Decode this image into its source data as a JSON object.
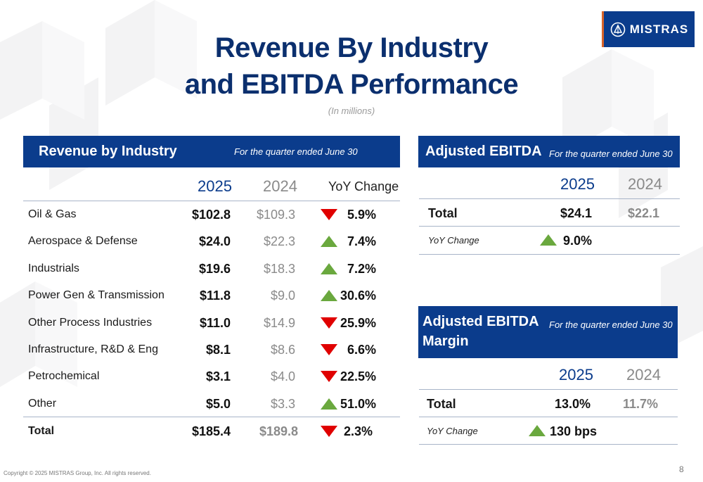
{
  "logo": {
    "text": "MISTRAS"
  },
  "title": {
    "line1": "Revenue By Industry",
    "line2": "and EBITDA Performance"
  },
  "subtitle": "(In millions)",
  "revenue": {
    "title": "Revenue by Industry",
    "period": "For the quarter ended June 30",
    "col_2025": "2025",
    "col_2024": "2024",
    "col_yoy": "YoY Change",
    "rows": [
      {
        "label": "Oil & Gas",
        "v2025": "$102.8",
        "v2024": "$109.3",
        "direction": "down",
        "change": "5.9%"
      },
      {
        "label": "Aerospace & Defense",
        "v2025": "$24.0",
        "v2024": "$22.3",
        "direction": "up",
        "change": "7.4%"
      },
      {
        "label": "Industrials",
        "v2025": "$19.6",
        "v2024": "$18.3",
        "direction": "up",
        "change": "7.2%"
      },
      {
        "label": "Power Gen & Transmission",
        "v2025": "$11.8",
        "v2024": "$9.0",
        "direction": "up",
        "change": "30.6%"
      },
      {
        "label": "Other Process Industries",
        "v2025": "$11.0",
        "v2024": "$14.9",
        "direction": "down",
        "change": "25.9%"
      },
      {
        "label": "Infrastructure, R&D & Eng",
        "v2025": "$8.1",
        "v2024": "$8.6",
        "direction": "down",
        "change": "6.6%"
      },
      {
        "label": "Petrochemical",
        "v2025": "$3.1",
        "v2024": "$4.0",
        "direction": "down",
        "change": "22.5%"
      },
      {
        "label": "Other",
        "v2025": "$5.0",
        "v2024": "$3.3",
        "direction": "up",
        "change": "51.0%"
      }
    ],
    "total": {
      "label": "Total",
      "v2025": "$185.4",
      "v2024": "$189.8",
      "direction": "down",
      "change": "2.3%"
    }
  },
  "ebitda": {
    "title": "Adjusted EBITDA",
    "period": "For the quarter ended June 30",
    "col_2025": "2025",
    "col_2024": "2024",
    "total_label": "Total",
    "total_2025": "$24.1",
    "total_2024": "$22.1",
    "yoy_label": "YoY Change",
    "yoy_direction": "up",
    "yoy_value": "9.0%"
  },
  "margin": {
    "title": "Adjusted EBITDA Margin",
    "period": "For the quarter ended June 30",
    "col_2025": "2025",
    "col_2024": "2024",
    "total_label": "Total",
    "total_2025": "13.0%",
    "total_2024": "11.7%",
    "yoy_label": "YoY Change",
    "yoy_direction": "up",
    "yoy_value": "130 bps"
  },
  "footer": {
    "copyright": "Copyright © 2025 MISTRAS Group, Inc. All rights reserved.",
    "page": "8"
  },
  "colors": {
    "brand_blue": "#0b3c8c",
    "title_blue": "#0b2f6e",
    "accent_orange": "#d9642a",
    "up_green": "#6aa83e",
    "down_red": "#e00000"
  }
}
